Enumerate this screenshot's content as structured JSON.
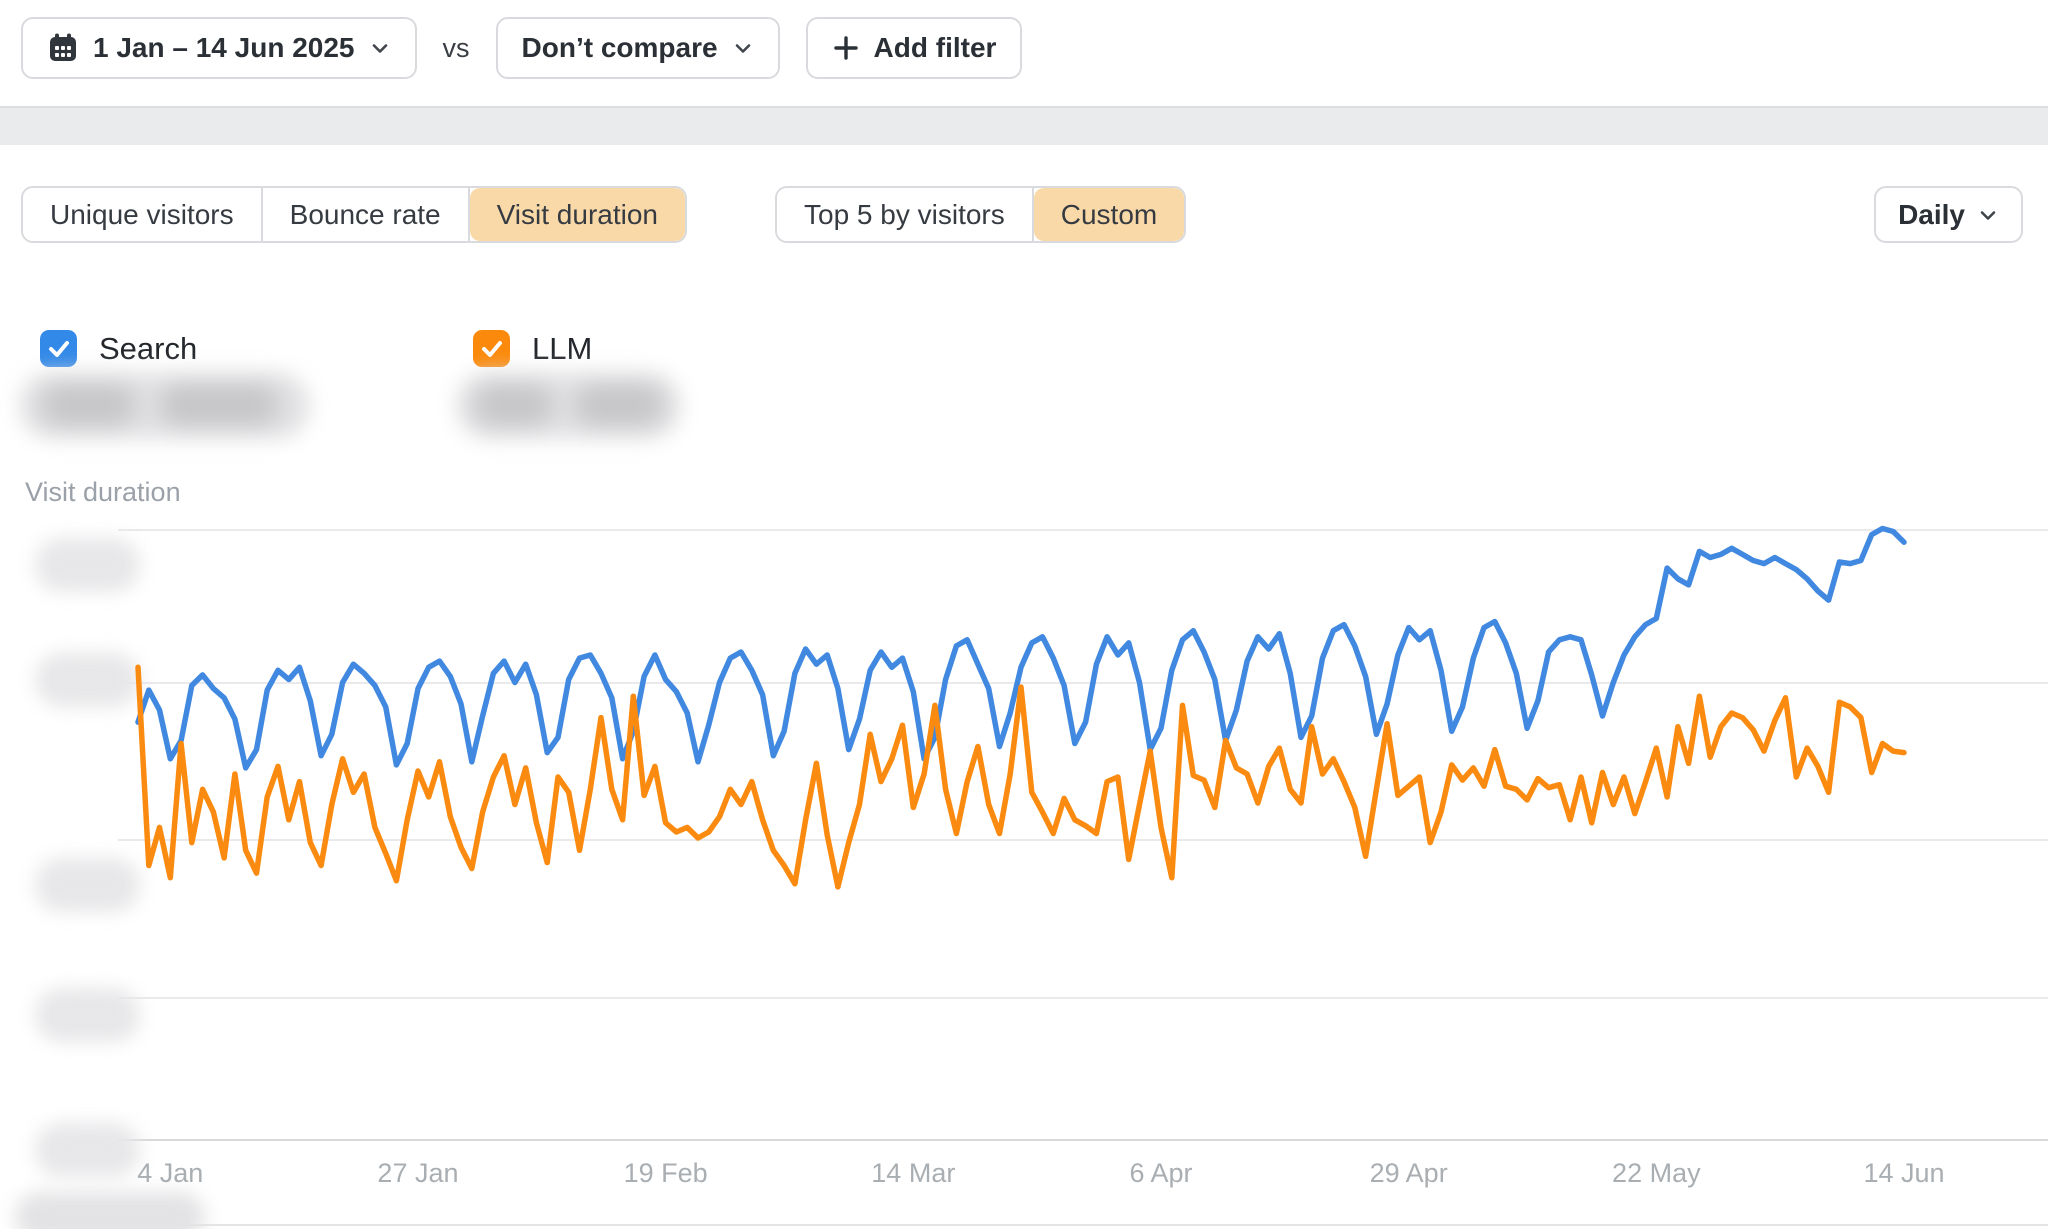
{
  "toolbar": {
    "date_range": {
      "label": "1 Jan – 14 Jun 2025"
    },
    "vs_label": "vs",
    "compare": {
      "label": "Don’t compare"
    },
    "add_filter": {
      "label": "Add filter"
    }
  },
  "metric_tabs": {
    "group1": [
      {
        "label": "Unique visitors",
        "active": false
      },
      {
        "label": "Bounce rate",
        "active": false
      },
      {
        "label": "Visit duration",
        "active": true
      }
    ],
    "group2": [
      {
        "label": "Top 5 by visitors",
        "active": false
      },
      {
        "label": "Custom",
        "active": true
      }
    ],
    "active_tab_bg": "#FAD9A8"
  },
  "interval_dropdown": {
    "label": "Daily"
  },
  "series_toggles": [
    {
      "label": "Search",
      "checked": true,
      "color": "#3389E8"
    },
    {
      "label": "LLM",
      "checked": true,
      "color": "#FB8A0C"
    }
  ],
  "chart": {
    "title": "Visit duration"
  },
  "chart_data": {
    "type": "line",
    "title": "Visit duration",
    "x_unit": "day",
    "date_start": "2025-01-01",
    "date_end": "2025-06-14",
    "interval": "Daily",
    "grid": true,
    "legend_position": "top-left checkboxes",
    "x_ticks": [
      {
        "label": "4 Jan",
        "day_index": 3
      },
      {
        "label": "27 Jan",
        "day_index": 26
      },
      {
        "label": "19 Feb",
        "day_index": 49
      },
      {
        "label": "14 Mar",
        "day_index": 72
      },
      {
        "label": "6 Apr",
        "day_index": 95
      },
      {
        "label": "29 Apr",
        "day_index": 118
      },
      {
        "label": "22 May",
        "day_index": 141
      },
      {
        "label": "14 Jun",
        "day_index": 164
      }
    ],
    "y_axis": {
      "tick_labels_blurred": true,
      "gridline_values": [
        0,
        1,
        2,
        3,
        4
      ],
      "unit_note": "y-axis numeric labels are blurred in the screenshot; values below are in gridline units (0 = baseline axis)"
    },
    "series": [
      {
        "name": "Search",
        "color": "#4189E0",
        "values": [
          2.74,
          2.95,
          2.82,
          2.5,
          2.62,
          2.98,
          3.05,
          2.96,
          2.9,
          2.76,
          2.44,
          2.56,
          2.95,
          3.08,
          3.02,
          3.1,
          2.88,
          2.52,
          2.66,
          3.0,
          3.12,
          3.06,
          2.98,
          2.84,
          2.46,
          2.6,
          2.96,
          3.1,
          3.14,
          3.04,
          2.86,
          2.48,
          2.78,
          3.06,
          3.14,
          3.0,
          3.12,
          2.92,
          2.54,
          2.64,
          3.02,
          3.16,
          3.18,
          3.06,
          2.9,
          2.5,
          2.68,
          3.04,
          3.18,
          3.02,
          2.94,
          2.8,
          2.48,
          2.72,
          3.0,
          3.16,
          3.2,
          3.08,
          2.92,
          2.52,
          2.68,
          3.06,
          3.22,
          3.12,
          3.18,
          2.96,
          2.56,
          2.76,
          3.08,
          3.2,
          3.1,
          3.16,
          2.94,
          2.5,
          2.64,
          3.02,
          3.24,
          3.28,
          3.12,
          2.96,
          2.58,
          2.8,
          3.1,
          3.26,
          3.3,
          3.16,
          2.98,
          2.6,
          2.74,
          3.12,
          3.3,
          3.18,
          3.26,
          3.0,
          2.56,
          2.7,
          3.08,
          3.28,
          3.34,
          3.2,
          3.02,
          2.62,
          2.82,
          3.14,
          3.3,
          3.22,
          3.32,
          3.06,
          2.64,
          2.78,
          3.16,
          3.34,
          3.38,
          3.24,
          3.04,
          2.66,
          2.86,
          3.18,
          3.36,
          3.28,
          3.34,
          3.08,
          2.68,
          2.84,
          3.16,
          3.36,
          3.4,
          3.26,
          3.06,
          2.7,
          2.88,
          3.2,
          3.28,
          3.3,
          3.28,
          3.05,
          2.78,
          3.0,
          3.18,
          3.3,
          3.38,
          3.42,
          3.75,
          3.68,
          3.64,
          3.86,
          3.82,
          3.84,
          3.88,
          3.84,
          3.8,
          3.78,
          3.82,
          3.78,
          3.74,
          3.68,
          3.6,
          3.54,
          3.79,
          3.78,
          3.8,
          3.97,
          4.01,
          3.99,
          3.92
        ]
      },
      {
        "name": "LLM",
        "color": "#FB8B10",
        "values": [
          3.1,
          1.8,
          2.05,
          1.72,
          2.6,
          1.95,
          2.3,
          2.15,
          1.85,
          2.4,
          1.9,
          1.75,
          2.25,
          2.45,
          2.1,
          2.35,
          1.95,
          1.8,
          2.2,
          2.5,
          2.28,
          2.4,
          2.05,
          1.88,
          1.7,
          2.1,
          2.42,
          2.25,
          2.48,
          2.12,
          1.92,
          1.78,
          2.15,
          2.38,
          2.52,
          2.2,
          2.44,
          2.08,
          1.82,
          2.38,
          2.28,
          1.9,
          2.3,
          2.77,
          2.3,
          2.1,
          2.91,
          2.26,
          2.45,
          2.08,
          2.02,
          2.05,
          1.98,
          2.02,
          2.12,
          2.3,
          2.2,
          2.35,
          2.1,
          1.9,
          1.8,
          1.68,
          2.1,
          2.47,
          2.0,
          1.66,
          1.95,
          2.2,
          2.66,
          2.35,
          2.5,
          2.72,
          2.18,
          2.4,
          2.85,
          2.3,
          2.01,
          2.35,
          2.58,
          2.2,
          2.01,
          2.4,
          2.97,
          2.28,
          2.15,
          2.01,
          2.24,
          2.1,
          2.06,
          2.01,
          2.35,
          2.38,
          1.84,
          2.2,
          2.55,
          2.05,
          1.72,
          2.85,
          2.39,
          2.36,
          2.18,
          2.62,
          2.44,
          2.4,
          2.21,
          2.45,
          2.57,
          2.3,
          2.21,
          2.71,
          2.4,
          2.5,
          2.35,
          2.18,
          1.86,
          2.3,
          2.73,
          2.26,
          2.32,
          2.38,
          1.95,
          2.15,
          2.46,
          2.36,
          2.44,
          2.32,
          2.56,
          2.32,
          2.3,
          2.23,
          2.37,
          2.31,
          2.33,
          2.1,
          2.38,
          2.08,
          2.41,
          2.2,
          2.38,
          2.14,
          2.35,
          2.57,
          2.25,
          2.71,
          2.47,
          2.91,
          2.51,
          2.71,
          2.8,
          2.77,
          2.69,
          2.55,
          2.75,
          2.9,
          2.38,
          2.57,
          2.45,
          2.28,
          2.87,
          2.84,
          2.77,
          2.41,
          2.6,
          2.55,
          2.54
        ]
      }
    ]
  }
}
